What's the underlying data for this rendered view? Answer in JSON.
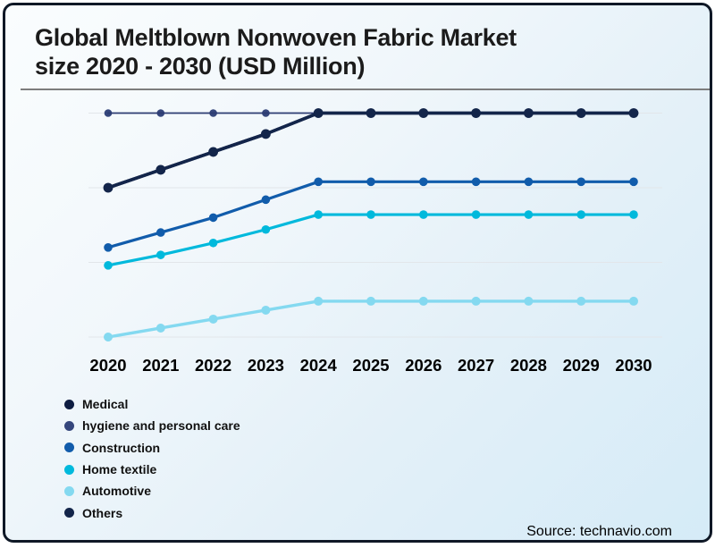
{
  "window": {
    "border_color": "#0f1826",
    "background_start": "#fafdfe",
    "background_end": "#d5ebf7"
  },
  "header": {
    "title_line1": "Global Meltblown Nonwoven Fabric Market",
    "title_line2": "size 2020 - 2030 (USD Million)"
  },
  "chart_data": {
    "type": "line",
    "title": "Global Meltblown Nonwoven Fabric Market size 2020 - 2030 (USD Million)",
    "x": [
      2020,
      2021,
      2022,
      2023,
      2024,
      2025,
      2026,
      2027,
      2028,
      2029,
      2030
    ],
    "xlabel": "",
    "ylabel": "",
    "y_axis_labels_visible": false,
    "values_note": "Y axis has no visible tick labels; series values are estimated relative index units read against the four unlabeled gridlines (top gridline = 100, bottom gridline = 25).",
    "gridline_values": [
      25,
      50,
      75,
      100
    ],
    "ylim": [
      20,
      106
    ],
    "grid": true,
    "legend_position": "bottom-left",
    "series": [
      {
        "name": "Medical",
        "color": "#0e1d42",
        "values": [
          75,
          81,
          87,
          93,
          100,
          100,
          100,
          100,
          100,
          100,
          100
        ]
      },
      {
        "name": "hygiene and personal care",
        "color": "#35467c",
        "line_color": "#2c3c72",
        "values": [
          100,
          100,
          100,
          100,
          100,
          100,
          100,
          100,
          100,
          100,
          100
        ]
      },
      {
        "name": "Construction",
        "color": "#115cab",
        "values": [
          55,
          60,
          65,
          71,
          77,
          77,
          77,
          77,
          77,
          77,
          77
        ]
      },
      {
        "name": "Home textile",
        "color": "#00b9dc",
        "values": [
          49,
          52.5,
          56.5,
          61,
          66,
          66,
          66,
          66,
          66,
          66,
          66
        ]
      },
      {
        "name": "Automotive",
        "color": "#84d9f0",
        "values": [
          25,
          28,
          31,
          34,
          37,
          37,
          37,
          37,
          37,
          37,
          37
        ]
      },
      {
        "name": "Others",
        "color": "#13254a",
        "values": [
          75,
          81,
          87,
          93,
          100,
          100,
          100,
          100,
          100,
          100,
          100
        ]
      }
    ],
    "gridline_color": "#e2e6ea",
    "tick_label_color": "#000000"
  },
  "footer": {
    "source_label": "Source: technavio.com"
  }
}
